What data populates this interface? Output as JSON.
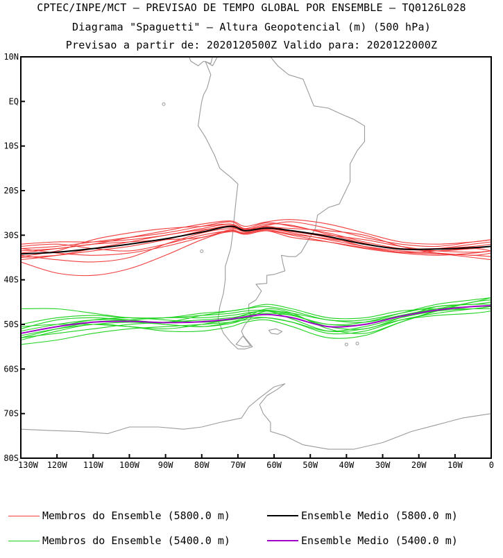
{
  "title": {
    "line1": "CPTEC/INPE/MCT — PREVISAO DE TEMPO GLOBAL POR ENSEMBLE — TQ0126L028",
    "line2": "Diagrama \"Spaguetti\" — Altura Geopotencial (m) (500 hPa)",
    "line3": "Previsao a partir de: 2020120500Z  Valido para: 2020122000Z"
  },
  "map": {
    "lon_range": [
      -130,
      0
    ],
    "lat_range": [
      -80,
      10
    ],
    "lat_ticks": [
      {
        "value": 10,
        "label": "10N"
      },
      {
        "value": 0,
        "label": "EQ"
      },
      {
        "value": -10,
        "label": "10S"
      },
      {
        "value": -20,
        "label": "20S"
      },
      {
        "value": -30,
        "label": "30S"
      },
      {
        "value": -40,
        "label": "40S"
      },
      {
        "value": -50,
        "label": "50S"
      },
      {
        "value": -60,
        "label": "60S"
      },
      {
        "value": -70,
        "label": "70S"
      },
      {
        "value": -80,
        "label": "80S"
      }
    ],
    "lon_ticks": [
      {
        "value": -130,
        "label": "130W"
      },
      {
        "value": -120,
        "label": "120W"
      },
      {
        "value": -110,
        "label": "110W"
      },
      {
        "value": -100,
        "label": "100W"
      },
      {
        "value": -90,
        "label": "90W"
      },
      {
        "value": -80,
        "label": "80W"
      },
      {
        "value": -70,
        "label": "70W"
      },
      {
        "value": -60,
        "label": "60W"
      },
      {
        "value": -50,
        "label": "50W"
      },
      {
        "value": -40,
        "label": "40W"
      },
      {
        "value": -30,
        "label": "30W"
      },
      {
        "value": -20,
        "label": "20W"
      },
      {
        "value": -10,
        "label": "10W"
      },
      {
        "value": 0,
        "label": "0"
      }
    ],
    "colors": {
      "coast": "#9a9a9a",
      "member_5800": "#f03c3c",
      "mean_5800": "#000000",
      "member_5400": "#1ed21e",
      "mean_5400": "#a000c8"
    }
  },
  "chart_data": {
    "type": "line",
    "x_unit": "longitude (deg)",
    "y_unit": "latitude (deg)",
    "x": [
      -130,
      -120,
      -110,
      -100,
      -90,
      -80,
      -72,
      -68,
      -62,
      -55,
      -45,
      -35,
      -25,
      -15,
      -5,
      0
    ],
    "series": [
      {
        "name": "Ensemble Medio (5800.0 m)",
        "group": "mean_5800",
        "values": [
          -34.2,
          -33.8,
          -33.0,
          -32.0,
          -30.8,
          -29.3,
          -28.0,
          -29.0,
          -28.4,
          -29.0,
          -30.3,
          -32.0,
          -33.1,
          -33.1,
          -32.8,
          -32.5
        ]
      },
      {
        "name": "Membro 5800 #1",
        "group": "member_5800",
        "values": [
          -33.0,
          -32.5,
          -31.5,
          -30.5,
          -29.5,
          -28.0,
          -27.0,
          -28.5,
          -27.2,
          -28.0,
          -29.5,
          -31.5,
          -33.0,
          -33.5,
          -33.0,
          -32.5
        ]
      },
      {
        "name": "Membro 5800 #2",
        "group": "member_5800",
        "values": [
          -36.0,
          -38.5,
          -39.0,
          -37.5,
          -34.5,
          -31.0,
          -29.0,
          -29.5,
          -28.5,
          -29.5,
          -31.0,
          -32.5,
          -33.5,
          -34.0,
          -34.5,
          -34.0
        ]
      },
      {
        "name": "Membro 5800 #3",
        "group": "member_5800",
        "values": [
          -32.0,
          -31.5,
          -31.5,
          -31.0,
          -30.0,
          -28.5,
          -27.5,
          -28.8,
          -27.8,
          -27.0,
          -28.5,
          -30.5,
          -32.0,
          -32.5,
          -31.5,
          -31.0
        ]
      },
      {
        "name": "Membro 5800 #4",
        "group": "member_5800",
        "values": [
          -34.5,
          -35.5,
          -36.0,
          -35.0,
          -32.0,
          -29.5,
          -28.5,
          -29.0,
          -28.0,
          -29.0,
          -30.0,
          -31.0,
          -32.5,
          -33.5,
          -33.8,
          -33.5
        ]
      },
      {
        "name": "Membro 5800 #5",
        "group": "member_5800",
        "values": [
          -33.5,
          -33.0,
          -32.0,
          -31.5,
          -31.0,
          -30.5,
          -28.8,
          -29.8,
          -29.0,
          -30.5,
          -31.5,
          -32.8,
          -33.8,
          -34.2,
          -34.5,
          -34.8
        ]
      },
      {
        "name": "Membro 5800 #6",
        "group": "member_5800",
        "values": [
          -35.0,
          -34.5,
          -33.5,
          -32.5,
          -31.0,
          -29.0,
          -27.8,
          -28.6,
          -28.2,
          -28.5,
          -29.0,
          -30.0,
          -32.5,
          -34.0,
          -35.0,
          -35.5
        ]
      },
      {
        "name": "Membro 5800 #7",
        "group": "member_5800",
        "values": [
          -32.5,
          -32.0,
          -33.0,
          -33.5,
          -32.0,
          -30.0,
          -29.0,
          -29.6,
          -28.8,
          -29.8,
          -30.8,
          -32.0,
          -33.0,
          -33.0,
          -32.5,
          -32.0
        ]
      },
      {
        "name": "Membro 5800 #8",
        "group": "member_5800",
        "values": [
          -34.0,
          -33.0,
          -32.0,
          -30.5,
          -29.0,
          -27.5,
          -26.8,
          -28.0,
          -27.0,
          -26.5,
          -27.5,
          -29.5,
          -31.5,
          -32.0,
          -31.5,
          -31.0
        ]
      },
      {
        "name": "Membro 5800 #9",
        "group": "member_5800",
        "values": [
          -35.5,
          -34.5,
          -33.0,
          -31.5,
          -30.0,
          -28.8,
          -28.2,
          -29.3,
          -28.6,
          -29.2,
          -30.5,
          -32.5,
          -33.8,
          -33.5,
          -33.0,
          -33.5
        ]
      },
      {
        "name": "Membro 5800 #10",
        "group": "member_5800",
        "values": [
          -33.0,
          -34.0,
          -34.5,
          -34.0,
          -32.5,
          -30.5,
          -29.2,
          -29.8,
          -29.0,
          -30.0,
          -31.5,
          -33.0,
          -34.0,
          -34.5,
          -34.0,
          -33.5
        ]
      },
      {
        "name": "Membro 5800 #11",
        "group": "member_5800",
        "values": [
          -34.8,
          -33.5,
          -31.0,
          -29.5,
          -28.5,
          -28.0,
          -27.5,
          -28.8,
          -27.5,
          -27.8,
          -29.8,
          -31.8,
          -33.2,
          -33.0,
          -32.0,
          -31.5
        ]
      },
      {
        "name": "Ensemble Medio (5400.0 m)",
        "group": "mean_5400",
        "values": [
          -52.0,
          -50.5,
          -49.5,
          -49.3,
          -49.6,
          -49.4,
          -48.8,
          -48.3,
          -47.8,
          -48.5,
          -50.5,
          -50.0,
          -48.2,
          -46.8,
          -46.0,
          -45.8
        ]
      },
      {
        "name": "Membro 5400 #1",
        "group": "member_5400",
        "values": [
          -52.5,
          -51.0,
          -50.0,
          -49.5,
          -50.0,
          -50.5,
          -49.5,
          -48.5,
          -46.5,
          -47.5,
          -51.0,
          -52.0,
          -49.5,
          -47.0,
          -45.0,
          -44.5
        ]
      },
      {
        "name": "Membro 5400 #2",
        "group": "member_5400",
        "values": [
          -51.0,
          -49.0,
          -48.5,
          -49.0,
          -49.5,
          -48.0,
          -47.0,
          -46.5,
          -46.0,
          -47.0,
          -49.0,
          -49.0,
          -47.5,
          -46.0,
          -45.5,
          -45.5
        ]
      },
      {
        "name": "Membro 5400 #3",
        "group": "member_5400",
        "values": [
          -46.5,
          -46.5,
          -47.5,
          -48.5,
          -48.5,
          -47.5,
          -47.0,
          -46.5,
          -45.5,
          -46.5,
          -48.5,
          -48.5,
          -47.0,
          -46.5,
          -46.5,
          -46.5
        ]
      },
      {
        "name": "Membro 5400 #4",
        "group": "member_5400",
        "values": [
          -54.5,
          -53.5,
          -52.0,
          -51.0,
          -50.5,
          -50.0,
          -49.5,
          -49.0,
          -48.5,
          -49.5,
          -52.0,
          -51.5,
          -49.0,
          -47.5,
          -46.5,
          -46.0
        ]
      },
      {
        "name": "Membro 5400 #5",
        "group": "member_5400",
        "values": [
          -53.5,
          -51.5,
          -50.0,
          -50.5,
          -51.5,
          -51.5,
          -50.5,
          -49.5,
          -49.0,
          -50.5,
          -53.0,
          -52.5,
          -49.5,
          -47.0,
          -46.0,
          -46.0
        ]
      },
      {
        "name": "Membro 5400 #6",
        "group": "member_5400",
        "values": [
          -50.0,
          -48.5,
          -48.0,
          -48.5,
          -48.5,
          -48.0,
          -47.5,
          -47.0,
          -46.8,
          -47.5,
          -49.0,
          -49.5,
          -48.0,
          -46.5,
          -45.0,
          -44.0
        ]
      },
      {
        "name": "Membro 5400 #7",
        "group": "member_5400",
        "values": [
          -52.0,
          -50.5,
          -49.0,
          -48.5,
          -49.0,
          -49.5,
          -49.0,
          -48.5,
          -48.5,
          -49.5,
          -51.5,
          -50.5,
          -48.5,
          -47.0,
          -46.5,
          -46.5
        ]
      },
      {
        "name": "Membro 5400 #8",
        "group": "member_5400",
        "values": [
          -53.0,
          -52.0,
          -51.0,
          -50.0,
          -49.5,
          -49.0,
          -48.5,
          -48.0,
          -47.5,
          -48.0,
          -50.0,
          -49.5,
          -47.5,
          -45.5,
          -44.5,
          -44.0
        ]
      },
      {
        "name": "Membro 5400 #9",
        "group": "member_5400",
        "values": [
          -51.5,
          -50.0,
          -49.0,
          -49.0,
          -50.0,
          -50.5,
          -49.8,
          -48.8,
          -47.0,
          -47.8,
          -50.5,
          -51.0,
          -48.5,
          -46.0,
          -45.5,
          -45.0
        ]
      },
      {
        "name": "Membro 5400 #10",
        "group": "member_5400",
        "values": [
          -50.5,
          -50.0,
          -50.0,
          -50.5,
          -51.0,
          -50.0,
          -48.8,
          -47.8,
          -47.0,
          -48.8,
          -51.5,
          -51.0,
          -49.0,
          -48.0,
          -47.5,
          -47.0
        ]
      },
      {
        "name": "Membro 5400 #11",
        "group": "member_5400",
        "values": [
          -53.0,
          -51.0,
          -49.5,
          -49.0,
          -48.5,
          -48.5,
          -48.0,
          -47.5,
          -47.0,
          -48.0,
          -50.0,
          -50.0,
          -48.0,
          -46.5,
          -46.0,
          -46.0
        ]
      }
    ],
    "xlabel": "",
    "ylabel": "",
    "xlim": [
      -130,
      0
    ],
    "ylim": [
      -80,
      10
    ]
  },
  "legend": {
    "member_5800_label": "Membros do Ensemble (5800.0 m)",
    "mean_5800_label": "Ensemble Medio (5800.0 m)",
    "member_5400_label": "Membros do Ensemble (5400.0 m)",
    "mean_5400_label": "Ensemble Medio (5400.0 m)"
  }
}
